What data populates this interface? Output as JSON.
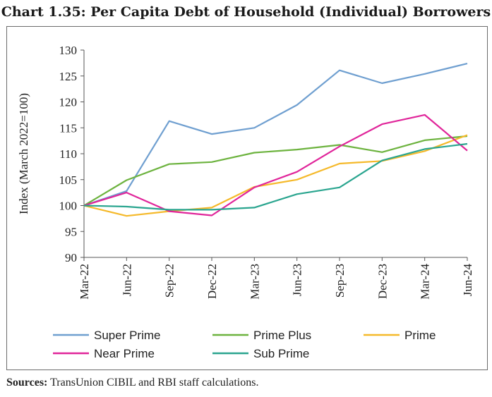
{
  "chart_data": {
    "type": "line",
    "title": "Chart 1.35: Per Capita Debt of Household (Individual) Borrowers",
    "xlabel": "",
    "ylabel": "Index (March 2022=100)",
    "ylim": [
      90,
      130
    ],
    "yticks": [
      90,
      95,
      100,
      105,
      110,
      115,
      120,
      125,
      130
    ],
    "categories": [
      "Mar-22",
      "Jun-22",
      "Sep-22",
      "Dec-22",
      "Mar-23",
      "Jun-23",
      "Sep-23",
      "Dec-23",
      "Mar-24",
      "Jun-24"
    ],
    "series": [
      {
        "name": "Super Prime",
        "color": "#6f9fd0",
        "values": [
          100,
          102.8,
          116.3,
          113.8,
          115.0,
          119.4,
          126.1,
          123.6,
          125.4,
          127.4
        ]
      },
      {
        "name": "Prime Plus",
        "color": "#6db33f",
        "values": [
          100,
          104.9,
          108.0,
          108.4,
          110.2,
          110.8,
          111.7,
          110.3,
          112.6,
          113.4
        ]
      },
      {
        "name": "Prime",
        "color": "#f5b92a",
        "values": [
          100,
          98.0,
          98.9,
          99.6,
          103.6,
          105.0,
          108.1,
          108.6,
          110.5,
          113.6
        ]
      },
      {
        "name": "Near Prime",
        "color": "#e0259a",
        "values": [
          100,
          102.5,
          98.9,
          98.1,
          103.5,
          106.5,
          111.4,
          115.7,
          117.5,
          110.6
        ]
      },
      {
        "name": "Sub Prime",
        "color": "#2aa58f",
        "values": [
          100,
          99.8,
          99.2,
          99.2,
          99.6,
          102.2,
          103.5,
          108.7,
          110.9,
          111.9
        ]
      }
    ],
    "legend": "bottom"
  },
  "sources": {
    "label": "Sources:",
    "text": "TransUnion CIBIL and RBI staff calculations."
  }
}
